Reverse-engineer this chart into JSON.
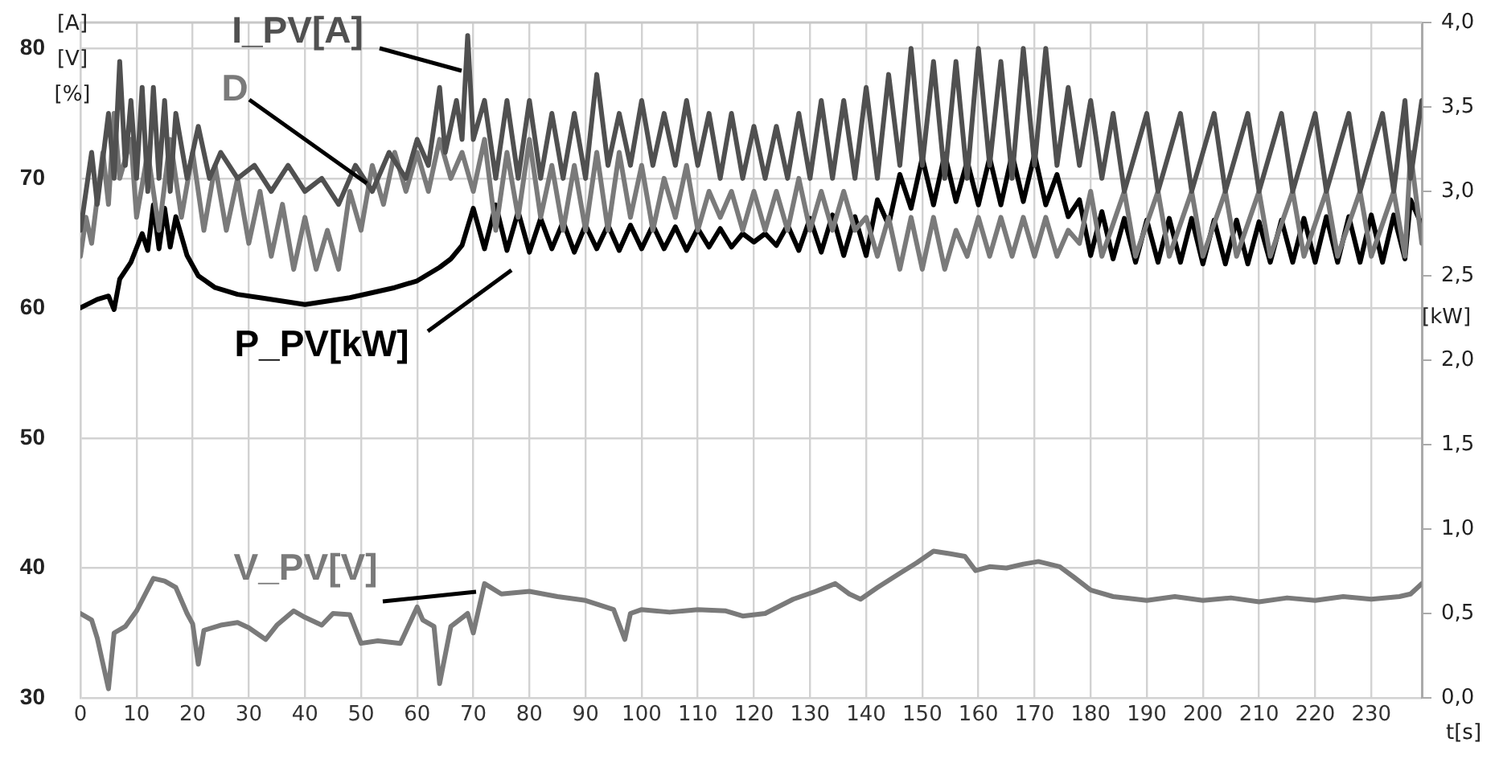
{
  "chart_data": {
    "type": "line",
    "ylabel": "[A] [V] [%]",
    "y2label": "[kW]",
    "xlabel": "t[s]",
    "xlim": [
      0,
      239
    ],
    "xticks": [
      0,
      10,
      20,
      30,
      40,
      50,
      60,
      70,
      80,
      90,
      100,
      110,
      120,
      130,
      140,
      150,
      160,
      170,
      180,
      190,
      200,
      210,
      220,
      230
    ],
    "ylim": [
      30,
      82
    ],
    "yticks": [
      30,
      40,
      50,
      60,
      70,
      80
    ],
    "y2lim": [
      0,
      4
    ],
    "y2ticks": [
      {
        "value": 0,
        "label": "0,0"
      },
      {
        "value": 0.5,
        "label": "0,5"
      },
      {
        "value": 1,
        "label": "1,0"
      },
      {
        "value": 1.5,
        "label": "1,5"
      },
      {
        "value": 2,
        "label": "2,0"
      },
      {
        "value": 2.5,
        "label": "2,5"
      },
      {
        "value": 3,
        "label": "3,0"
      },
      {
        "value": 3.5,
        "label": "3,5"
      },
      {
        "value": 4,
        "label": "4,0"
      }
    ],
    "grid": true,
    "legend": false,
    "marker": "none",
    "line_style": "solid",
    "series": [
      {
        "name": "I_PV[A]",
        "color": "#505050",
        "x": [
          0,
          2,
          3,
          5,
          6,
          7,
          8,
          9,
          10,
          11,
          12,
          13,
          14,
          15,
          16,
          17,
          19,
          21,
          23,
          25,
          28,
          31,
          34,
          37,
          40,
          43,
          46,
          49,
          52,
          55,
          58,
          60,
          62,
          64,
          65,
          67,
          68,
          69,
          70,
          72,
          74,
          76,
          78,
          80,
          82,
          84,
          86,
          88,
          90,
          92,
          94,
          96,
          98,
          100,
          102,
          104,
          106,
          108,
          110,
          112,
          114,
          116,
          118,
          120,
          122,
          124,
          126,
          128,
          130,
          132,
          134,
          136,
          138,
          140,
          142,
          144,
          146,
          148,
          150,
          152,
          154,
          156,
          158,
          160,
          162,
          164,
          166,
          168,
          170,
          172,
          174,
          176,
          178,
          180,
          182,
          184,
          186,
          190,
          192,
          196,
          198,
          202,
          204,
          208,
          210,
          214,
          216,
          220,
          222,
          226,
          228,
          232,
          234,
          236,
          237,
          239
        ],
        "values": [
          66,
          72,
          68,
          75,
          70,
          79,
          71,
          76,
          70,
          77,
          69,
          77,
          70,
          76,
          69,
          75,
          70,
          74,
          70,
          72,
          70,
          71,
          69,
          71,
          69,
          70,
          68,
          71,
          69,
          72,
          70,
          73,
          71,
          77,
          72,
          76,
          73,
          81,
          73,
          76,
          70,
          76,
          70,
          76,
          70,
          75,
          70,
          75,
          70,
          78,
          71,
          75,
          71,
          76,
          71,
          75,
          71,
          76,
          71,
          75,
          70,
          75,
          70,
          74,
          70,
          74,
          70,
          75,
          70,
          76,
          70,
          76,
          70,
          77,
          70,
          78,
          71,
          80,
          71,
          79,
          70,
          79,
          70,
          80,
          71,
          79,
          70,
          80,
          71,
          80,
          71,
          77,
          71,
          76,
          70,
          75,
          69,
          75,
          69,
          75,
          69,
          75,
          69,
          75,
          69,
          75,
          69,
          75,
          69,
          75,
          69,
          75,
          69,
          76,
          70,
          76
        ]
      },
      {
        "name": "D",
        "color": "#7a7a7a",
        "x": [
          0,
          1,
          2,
          4,
          5,
          6,
          7,
          9,
          10,
          12,
          14,
          16,
          18,
          20,
          22,
          24,
          26,
          28,
          30,
          32,
          34,
          36,
          38,
          40,
          42,
          44,
          46,
          48,
          50,
          52,
          54,
          56,
          58,
          60,
          62,
          64,
          66,
          68,
          70,
          72,
          74,
          76,
          78,
          80,
          82,
          84,
          86,
          88,
          90,
          92,
          94,
          96,
          98,
          100,
          102,
          104,
          106,
          108,
          110,
          112,
          114,
          116,
          118,
          120,
          122,
          124,
          126,
          128,
          130,
          132,
          134,
          136,
          138,
          140,
          142,
          144,
          146,
          148,
          150,
          152,
          154,
          156,
          158,
          160,
          162,
          164,
          166,
          168,
          170,
          172,
          174,
          176,
          178,
          180,
          182,
          186,
          188,
          192,
          194,
          198,
          200,
          204,
          206,
          210,
          212,
          216,
          218,
          222,
          224,
          228,
          230,
          234,
          236,
          237,
          239
        ],
        "values": [
          64,
          67,
          65,
          72,
          68,
          75,
          70,
          73,
          67,
          72,
          66,
          73,
          67,
          72,
          66,
          71,
          66,
          70,
          65,
          69,
          64,
          68,
          63,
          67,
          63,
          66,
          63,
          69,
          66,
          71,
          68,
          72,
          69,
          72,
          69,
          73,
          70,
          72,
          69,
          73,
          66,
          72,
          67,
          73,
          67,
          71,
          66,
          71,
          66,
          72,
          66,
          72,
          67,
          71,
          66,
          70,
          67,
          71,
          66,
          69,
          67,
          69,
          66,
          69,
          66,
          69,
          66,
          70,
          66,
          69,
          66,
          69,
          66,
          67,
          64,
          67,
          63,
          67,
          63,
          67,
          63,
          66,
          64,
          67,
          64,
          67,
          64,
          67,
          64,
          67,
          64,
          66,
          65,
          69,
          64,
          69,
          64,
          69,
          64,
          69,
          64,
          69,
          64,
          69,
          64,
          69,
          64,
          69,
          64,
          69,
          64,
          69,
          64,
          72,
          65
        ]
      },
      {
        "name": "P_PV[kW]",
        "color": "#000000",
        "axis": "y2",
        "x": [
          0,
          3,
          5,
          6,
          7,
          9,
          11,
          12,
          13,
          14,
          15,
          16,
          17,
          19,
          21,
          24,
          28,
          32,
          36,
          40,
          44,
          48,
          52,
          56,
          60,
          64,
          66,
          68,
          70,
          72,
          74,
          76,
          78,
          80,
          82,
          84,
          86,
          88,
          90,
          92,
          94,
          96,
          98,
          100,
          102,
          104,
          106,
          108,
          110,
          112,
          114,
          116,
          118,
          120,
          122,
          124,
          126,
          128,
          130,
          132,
          134,
          136,
          138,
          140,
          142,
          144,
          146,
          148,
          150,
          152,
          154,
          156,
          158,
          160,
          162,
          164,
          166,
          168,
          170,
          172,
          174,
          176,
          178,
          180,
          182,
          184,
          186,
          188,
          190,
          192,
          194,
          196,
          198,
          200,
          202,
          204,
          206,
          208,
          210,
          212,
          214,
          216,
          218,
          220,
          222,
          224,
          226,
          228,
          230,
          232,
          234,
          236,
          237,
          239
        ],
        "values": [
          2.31,
          2.36,
          2.38,
          2.3,
          2.48,
          2.58,
          2.75,
          2.65,
          2.92,
          2.66,
          2.9,
          2.67,
          2.85,
          2.62,
          2.5,
          2.43,
          2.39,
          2.37,
          2.35,
          2.33,
          2.35,
          2.37,
          2.4,
          2.43,
          2.47,
          2.55,
          2.6,
          2.68,
          2.9,
          2.66,
          2.92,
          2.65,
          2.88,
          2.64,
          2.84,
          2.66,
          2.82,
          2.64,
          2.8,
          2.66,
          2.8,
          2.65,
          2.8,
          2.66,
          2.8,
          2.66,
          2.79,
          2.65,
          2.78,
          2.67,
          2.78,
          2.67,
          2.75,
          2.7,
          2.75,
          2.68,
          2.8,
          2.65,
          2.84,
          2.64,
          2.86,
          2.62,
          2.85,
          2.62,
          2.95,
          2.8,
          3.1,
          2.9,
          3.2,
          2.92,
          3.22,
          2.94,
          3.18,
          2.92,
          3.2,
          2.92,
          3.22,
          2.94,
          3.22,
          2.92,
          3.1,
          2.85,
          2.95,
          2.62,
          2.88,
          2.6,
          2.84,
          2.58,
          2.83,
          2.58,
          2.84,
          2.58,
          2.84,
          2.57,
          2.83,
          2.57,
          2.83,
          2.57,
          2.82,
          2.58,
          2.83,
          2.58,
          2.84,
          2.58,
          2.85,
          2.58,
          2.85,
          2.58,
          2.86,
          2.58,
          2.86,
          2.6,
          2.95,
          2.8
        ]
      },
      {
        "name": "V_PV[V]",
        "color": "#7a7a7a",
        "x": [
          0,
          2,
          3,
          5,
          6,
          8,
          10,
          13,
          15,
          17,
          19,
          20,
          21,
          22,
          25,
          28,
          30,
          33,
          35,
          38,
          40,
          43,
          45,
          48,
          50,
          53,
          57,
          60,
          61,
          63,
          64,
          66,
          69,
          70,
          72,
          75,
          80,
          85,
          90,
          95,
          97,
          98,
          100,
          105,
          110,
          115,
          118,
          122,
          127,
          131,
          134.5,
          137,
          139,
          142,
          146,
          149,
          152,
          155,
          157.6,
          159.5,
          162,
          165,
          168,
          170.7,
          174.5,
          177,
          180,
          184,
          190,
          195,
          200,
          205,
          210,
          215,
          220,
          225,
          230,
          235,
          237,
          239
        ],
        "values": [
          36.5,
          36,
          34.6,
          30.7,
          35,
          35.5,
          36.7,
          39.2,
          39,
          38.5,
          36.5,
          35.7,
          32.6,
          35.2,
          35.6,
          35.8,
          35.4,
          34.5,
          35.6,
          36.7,
          36.2,
          35.6,
          36.5,
          36.4,
          34.2,
          34.4,
          34.2,
          37,
          36,
          35.5,
          31.1,
          35.5,
          36.5,
          35,
          38.8,
          38,
          38.2,
          37.8,
          37.5,
          36.8,
          34.5,
          36.5,
          36.8,
          36.6,
          36.8,
          36.7,
          36.3,
          36.5,
          37.6,
          38.2,
          38.8,
          38,
          37.6,
          38.5,
          39.6,
          40.4,
          41.3,
          41.1,
          40.9,
          39.8,
          40.1,
          40,
          40.3,
          40.5,
          40.1,
          39.3,
          38.3,
          37.8,
          37.5,
          37.8,
          37.5,
          37.7,
          37.4,
          37.7,
          37.5,
          37.8,
          37.6,
          37.8,
          38,
          38.8
        ]
      }
    ]
  }
}
